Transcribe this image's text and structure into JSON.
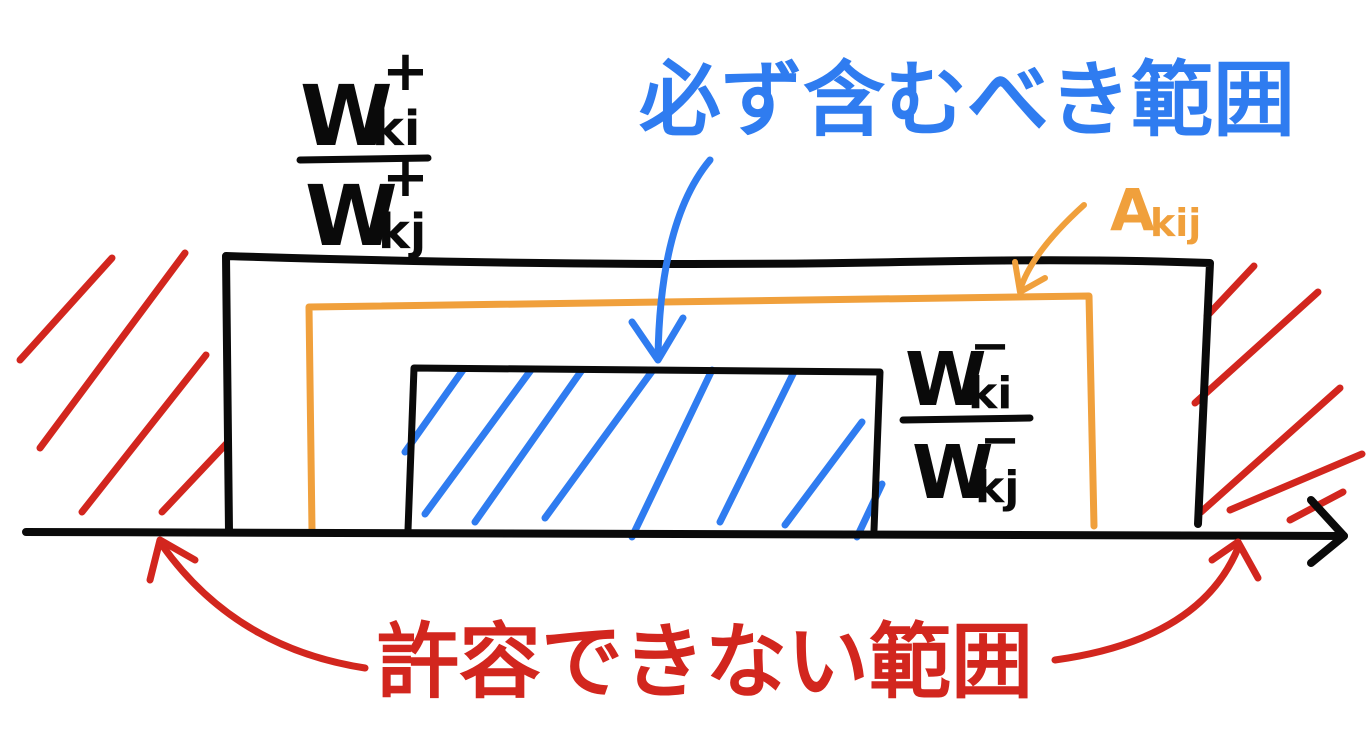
{
  "labels": {
    "must_include": "必ず含むべき範囲",
    "not_allowed": "許容できない範囲",
    "a_kij": {
      "main": "A",
      "sub": "kij"
    },
    "upper_ratio": {
      "num_main": "W",
      "num_sub": "ki",
      "num_sup": "+",
      "den_main": "W",
      "den_sub": "kj",
      "den_sup": "+"
    },
    "lower_ratio": {
      "num_main": "W",
      "num_sub": "ki",
      "num_sup": "−",
      "den_main": "W",
      "den_sub": "kj",
      "den_sup": "−"
    }
  },
  "colors": {
    "ink": "#0a0a0a",
    "blue": "#2f7cf0",
    "orange": "#f0a03c",
    "red": "#d2261e",
    "background": "#ffffff"
  }
}
